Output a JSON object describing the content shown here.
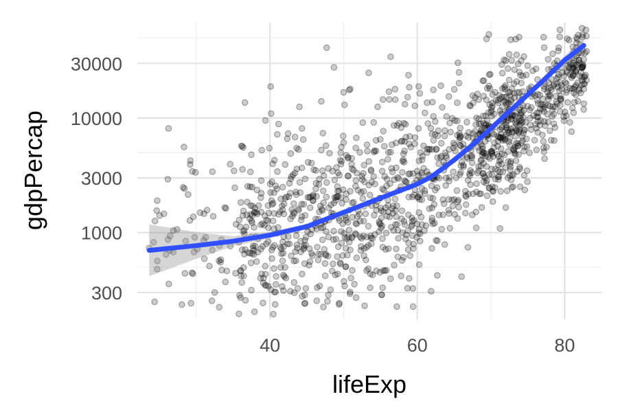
{
  "chart_data": {
    "type": "scatter",
    "xlabel": "lifeExp",
    "ylabel": "gdpPercap",
    "x_scale": "linear",
    "y_scale": "log10",
    "xlim": [
      22,
      85
    ],
    "ylim": [
      175,
      68000
    ],
    "x_ticks": [
      40,
      60,
      80
    ],
    "x_minor_ticks": [
      30,
      50,
      70
    ],
    "y_ticks": [
      300,
      1000,
      3000,
      10000,
      30000
    ],
    "y_tick_labels": [
      "300",
      "1000",
      "3000",
      "10000",
      "30000"
    ],
    "y_minor_ticks": [
      500,
      5000,
      50000
    ],
    "grid": true,
    "legend": "none",
    "point_color": "#000000",
    "point_alpha": 0.2,
    "trend_color": "#3050ff",
    "ribbon_color": "#999999",
    "point_count": 1400,
    "point_seed": 7,
    "point_cloud_segments": [
      {
        "x_range": [
          24,
          36
        ],
        "weight": 0.05,
        "y_center": [
          850,
          1000
        ],
        "y_spread": 0.36
      },
      {
        "x_range": [
          36,
          48
        ],
        "weight": 0.21,
        "y_center": [
          1000,
          1300
        ],
        "y_spread": 0.4
      },
      {
        "x_range": [
          48,
          60
        ],
        "weight": 0.23,
        "y_center": [
          1300,
          2600
        ],
        "y_spread": 0.42
      },
      {
        "x_range": [
          60,
          68
        ],
        "weight": 0.14,
        "y_center": [
          2600,
          5500
        ],
        "y_spread": 0.36
      },
      {
        "x_range": [
          68,
          75
        ],
        "weight": 0.22,
        "y_center": [
          5500,
          11000
        ],
        "y_spread": 0.3
      },
      {
        "x_range": [
          75,
          83
        ],
        "weight": 0.15,
        "y_center": [
          11000,
          30000
        ],
        "y_spread": 0.2
      }
    ],
    "notable_points": [
      {
        "x": 23.6,
        "y": 731
      },
      {
        "x": 69.4,
        "y": 49000
      },
      {
        "x": 58.8,
        "y": 23700
      },
      {
        "x": 29.9,
        "y": 3350
      },
      {
        "x": 32.5,
        "y": 300
      },
      {
        "x": 44.7,
        "y": 240
      },
      {
        "x": 55.3,
        "y": 330
      },
      {
        "x": 59.4,
        "y": 325
      },
      {
        "x": 72.0,
        "y": 1650
      },
      {
        "x": 68.0,
        "y": 1100
      },
      {
        "x": 44.0,
        "y": 12500
      },
      {
        "x": 53.4,
        "y": 24800
      },
      {
        "x": 47.5,
        "y": 420
      },
      {
        "x": 80.6,
        "y": 47800
      },
      {
        "x": 82.6,
        "y": 32500
      }
    ],
    "trend": {
      "x": [
        23.6,
        30,
        35,
        40,
        45,
        50,
        55,
        60,
        62,
        65,
        68,
        71,
        74,
        77,
        80,
        82.6
      ],
      "y": [
        700,
        770,
        840,
        950,
        1130,
        1500,
        2000,
        2650,
        3100,
        4300,
        6200,
        9300,
        14000,
        21000,
        32000,
        43000
      ],
      "lower": [
        415,
        590,
        760,
        890,
        1070,
        1430,
        1910,
        2540,
        2960,
        4130,
        5980,
        8980,
        13400,
        20000,
        29500,
        37500
      ],
      "upper": [
        1180,
        1010,
        930,
        1015,
        1190,
        1570,
        2090,
        2760,
        3240,
        4480,
        6420,
        9630,
        14600,
        22100,
        34800,
        50500
      ]
    }
  }
}
